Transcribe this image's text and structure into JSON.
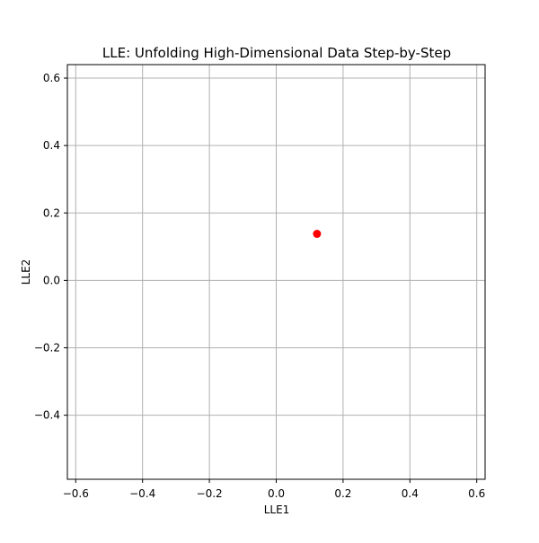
{
  "chart_data": {
    "type": "scatter",
    "title": "LLE: Unfolding High-Dimensional Data Step-by-Step",
    "xlabel": "LLE1",
    "ylabel": "LLE2",
    "xlim": [
      -0.625,
      0.625
    ],
    "ylim": [
      -0.59,
      0.64
    ],
    "xticks": [
      -0.6,
      -0.4,
      -0.2,
      0.0,
      0.2,
      0.4,
      0.6
    ],
    "yticks": [
      -0.4,
      -0.2,
      0.0,
      0.2,
      0.4,
      0.6
    ],
    "xtick_labels": [
      "−0.6",
      "−0.4",
      "−0.2",
      "0.0",
      "0.2",
      "0.4",
      "0.6"
    ],
    "ytick_labels": [
      "−0.4",
      "−0.2",
      "0.0",
      "0.2",
      "0.4",
      "0.6"
    ],
    "grid": true,
    "legend": "none",
    "series": [
      {
        "color": "#ff0000",
        "points": [
          {
            "x": 0.122,
            "y": 0.138
          }
        ]
      }
    ]
  }
}
